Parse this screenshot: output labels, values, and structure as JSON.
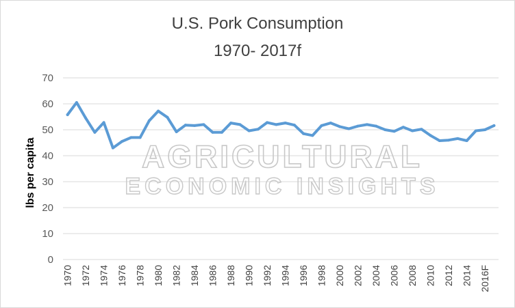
{
  "chart_data": {
    "type": "line",
    "title": "U.S. Pork Consumption",
    "subtitle": "1970- 2017f",
    "xlabel": "",
    "ylabel": "lbs per capita",
    "ylim": [
      0,
      70
    ],
    "yticks": [
      0,
      10,
      20,
      30,
      40,
      50,
      60,
      70
    ],
    "grid": "horizontal",
    "legend": "none",
    "x": [
      "1970",
      "1971",
      "1972",
      "1973",
      "1974",
      "1975",
      "1976",
      "1977",
      "1978",
      "1979",
      "1980",
      "1981",
      "1982",
      "1983",
      "1984",
      "1985",
      "1986",
      "1987",
      "1988",
      "1989",
      "1990",
      "1991",
      "1992",
      "1993",
      "1994",
      "1995",
      "1996",
      "1997",
      "1998",
      "1999",
      "2000",
      "2001",
      "2002",
      "2003",
      "2004",
      "2005",
      "2006",
      "2007",
      "2008",
      "2009",
      "2010",
      "2011",
      "2012",
      "2013",
      "2014",
      "2015",
      "2016F",
      "2017F"
    ],
    "x_tick_labels": [
      "1970",
      "1972",
      "1974",
      "1976",
      "1978",
      "1980",
      "1982",
      "1984",
      "1986",
      "1988",
      "1990",
      "1992",
      "1994",
      "1996",
      "1998",
      "2000",
      "2002",
      "2004",
      "2006",
      "2008",
      "2010",
      "2012",
      "2014",
      "2016F"
    ],
    "series": [
      {
        "values": [
          55.8,
          60.5,
          54.5,
          49.0,
          52.8,
          43.0,
          45.5,
          47.0,
          47.0,
          53.5,
          57.2,
          54.8,
          49.2,
          51.8,
          51.6,
          52.0,
          49.0,
          49.0,
          52.6,
          52.0,
          49.6,
          50.2,
          52.8,
          52.0,
          52.6,
          51.8,
          48.5,
          47.8,
          51.6,
          52.6,
          51.2,
          50.4,
          51.4,
          52.0,
          51.4,
          50.0,
          49.4,
          51.0,
          49.6,
          50.2,
          47.8,
          45.8,
          46.0,
          46.6,
          45.8,
          49.6,
          50.0,
          51.6
        ]
      }
    ],
    "colors": {
      "line": "#5b9bd5",
      "grid": "#d9d9d9"
    }
  },
  "watermark": {
    "line1": "AGRICULTURAL",
    "line2": "ECONOMIC INSIGHTS"
  }
}
